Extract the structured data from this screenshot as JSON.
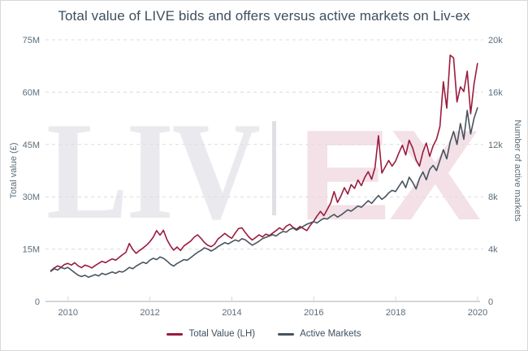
{
  "chart_data": {
    "type": "line",
    "title": "Total value of LIVE bids and offers versus active markets on Liv-ex",
    "grid": "horizontal-dashed",
    "legend_position": "bottom-center",
    "watermark": {
      "left_text": "LIV",
      "right_text": "EX"
    },
    "x_axis": {
      "tick_labels": [
        "2010",
        "2012",
        "2014",
        "2016",
        "2018",
        "2020"
      ],
      "tick_values": [
        2010,
        2012,
        2014,
        2016,
        2018,
        2020
      ],
      "range": [
        2009.45,
        2020.06
      ]
    },
    "left_axis": {
      "title": "Total value (£)",
      "tick_labels": [
        "0",
        "15M",
        "30M",
        "45M",
        "60M",
        "75M"
      ],
      "tick_values": [
        0,
        15,
        30,
        45,
        60,
        75
      ],
      "range": [
        0,
        75
      ]
    },
    "right_axis": {
      "title": "Number of active markets",
      "tick_labels": [
        "0",
        "4k",
        "8k",
        "12k",
        "16k",
        "20k"
      ],
      "tick_values": [
        0,
        4,
        8,
        12,
        16,
        20
      ],
      "range": [
        0,
        20
      ]
    },
    "series": [
      {
        "name": "Total Value (LH)",
        "axis": "left",
        "color": "#9b1b3d",
        "unit": "million £",
        "x_start": 2009.58,
        "x_step": 0.08333,
        "values": [
          8.8,
          9.6,
          10.2,
          9.8,
          10.6,
          10.9,
          10.4,
          11.1,
          10.2,
          9.7,
          10.4,
          10.1,
          9.6,
          10.3,
          10.9,
          11.5,
          11.1,
          11.7,
          12.2,
          11.8,
          12.6,
          13.4,
          14.1,
          16.6,
          14.9,
          13.8,
          14.6,
          15.3,
          16.1,
          17.1,
          18.4,
          20.3,
          19.0,
          20.4,
          17.8,
          16.0,
          14.7,
          15.6,
          14.6,
          15.9,
          16.6,
          17.3,
          18.4,
          19.1,
          18.1,
          16.9,
          16.1,
          15.7,
          16.4,
          17.9,
          18.7,
          19.5,
          18.7,
          18.1,
          19.6,
          20.9,
          21.1,
          19.7,
          18.5,
          17.6,
          18.3,
          19.1,
          18.5,
          19.3,
          18.9,
          19.6,
          20.3,
          21.1,
          20.5,
          21.6,
          22.1,
          21.2,
          20.7,
          21.5,
          20.9,
          20.3,
          21.8,
          23.0,
          24.5,
          25.8,
          24.6,
          26.4,
          28.2,
          31.5,
          28.4,
          30.2,
          32.6,
          30.8,
          33.5,
          32.4,
          34.8,
          33.2,
          35.6,
          37.2,
          35.0,
          38.4,
          47.5,
          36.8,
          38.6,
          40.4,
          38.8,
          40.2,
          42.6,
          44.8,
          42.0,
          46.2,
          44.0,
          40.6,
          38.8,
          42.8,
          45.4,
          41.6,
          44.6,
          46.5,
          50.2,
          63.0,
          55.4,
          70.6,
          69.8,
          57.2,
          61.5,
          60.2,
          66.0,
          53.8,
          62.4,
          68.2
        ]
      },
      {
        "name": "Active Markets",
        "axis": "right",
        "color": "#47545f",
        "unit": "thousand markets",
        "x_start": 2009.58,
        "x_step": 0.08333,
        "values": [
          2.3,
          2.5,
          2.4,
          2.6,
          2.5,
          2.6,
          2.4,
          2.2,
          2.0,
          1.9,
          2.0,
          1.85,
          1.95,
          2.05,
          1.95,
          2.15,
          2.05,
          2.15,
          2.25,
          2.15,
          2.3,
          2.25,
          2.4,
          2.6,
          2.5,
          2.7,
          2.85,
          3.0,
          2.9,
          3.15,
          3.3,
          3.2,
          3.4,
          3.3,
          3.1,
          2.85,
          2.7,
          2.9,
          3.05,
          3.2,
          3.15,
          3.35,
          3.55,
          3.75,
          3.9,
          4.1,
          4.0,
          3.85,
          4.0,
          4.2,
          4.35,
          4.5,
          4.4,
          4.55,
          4.7,
          4.6,
          4.8,
          4.7,
          4.5,
          4.3,
          4.45,
          4.6,
          4.8,
          4.9,
          5.0,
          5.1,
          5.0,
          5.2,
          5.35,
          5.3,
          5.5,
          5.6,
          5.45,
          5.6,
          5.75,
          5.9,
          6.0,
          6.1,
          6.0,
          6.2,
          6.35,
          6.3,
          6.5,
          6.65,
          6.45,
          6.6,
          6.8,
          7.0,
          6.9,
          7.1,
          7.3,
          7.2,
          7.45,
          7.7,
          7.5,
          7.8,
          8.1,
          7.8,
          8.0,
          8.3,
          8.5,
          8.4,
          8.8,
          9.2,
          8.7,
          9.5,
          9.1,
          8.6,
          9.4,
          9.9,
          9.3,
          10.1,
          10.4,
          10.0,
          10.8,
          11.6,
          10.9,
          12.2,
          13.0,
          12.0,
          13.6,
          12.4,
          14.6,
          12.8,
          14.0,
          14.8
        ]
      }
    ]
  }
}
